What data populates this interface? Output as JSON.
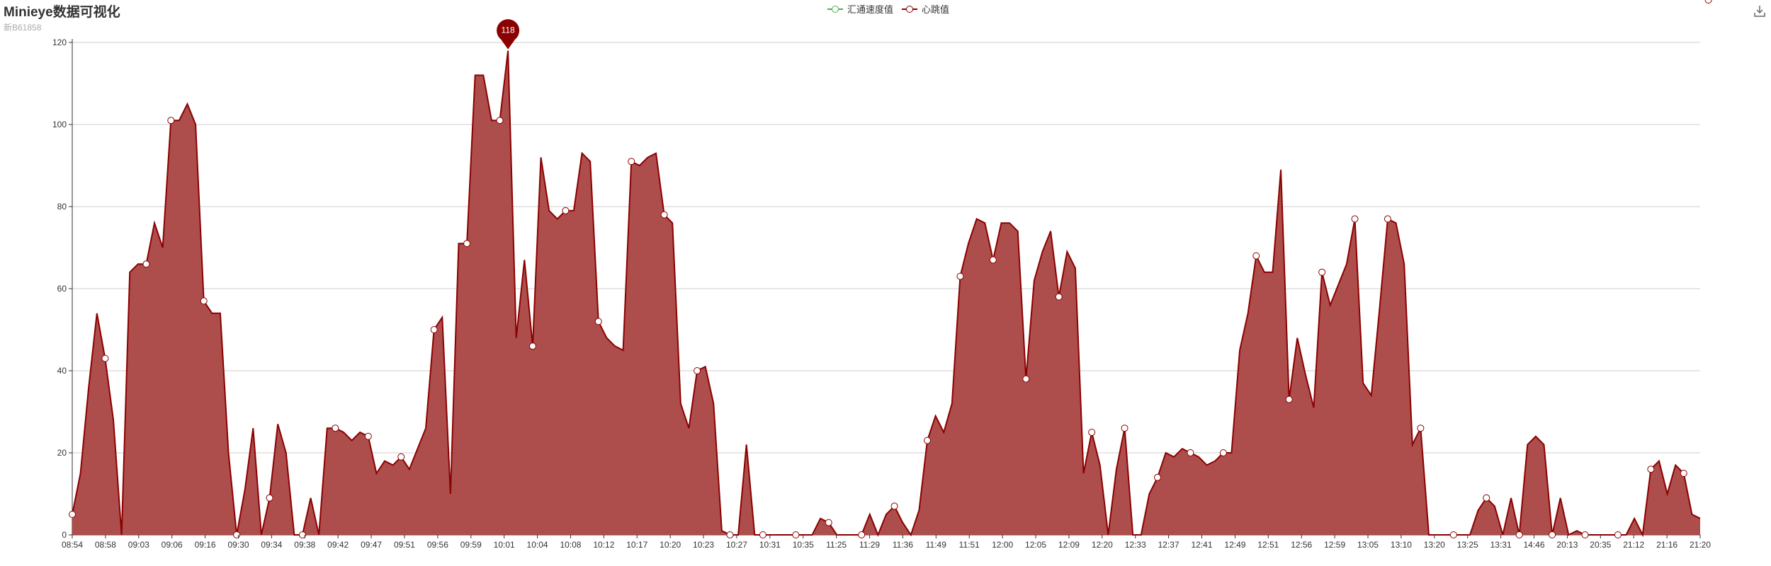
{
  "header": {
    "title": "Minieye数据可视化",
    "subtitle": "新B61858"
  },
  "legend": [
    {
      "name": "汇通速度值",
      "color": "#4cae4c"
    },
    {
      "name": "心跳值",
      "color": "#8b0000"
    }
  ],
  "toolbar": {
    "download_icon": "download-icon"
  },
  "chart_data": {
    "type": "area",
    "title": "Minieye数据可视化",
    "subtitle": "新B61858",
    "xlabel": "",
    "ylabel": "",
    "ylim": [
      0,
      120
    ],
    "yticks": [
      0,
      20,
      40,
      60,
      80,
      100,
      120
    ],
    "grid": true,
    "legend_position": "top-center",
    "x_tick_labels": [
      "08:54",
      "08:58",
      "09:03",
      "09:06",
      "09:16",
      "09:30",
      "09:34",
      "09:38",
      "09:42",
      "09:47",
      "09:51",
      "09:56",
      "09:59",
      "10:01",
      "10:04",
      "10:08",
      "10:12",
      "10:17",
      "10:20",
      "10:23",
      "10:27",
      "10:31",
      "10:35",
      "11:25",
      "11:29",
      "11:36",
      "11:49",
      "11:51",
      "12:00",
      "12:05",
      "12:09",
      "12:20",
      "12:33",
      "12:37",
      "12:41",
      "12:49",
      "12:51",
      "12:56",
      "12:59",
      "13:05",
      "13:10",
      "13:20",
      "13:25",
      "13:31",
      "14:46",
      "20:13",
      "20:35",
      "21:12",
      "21:16",
      "21:20"
    ],
    "series": [
      {
        "name": "汇通速度值",
        "color": "#4cae4c",
        "values": []
      },
      {
        "name": "心跳值",
        "color": "#8b0000",
        "fill": "#a94442",
        "values": [
          5,
          15,
          36,
          54,
          43,
          28,
          0,
          64,
          66,
          66,
          76,
          70,
          101,
          101,
          105,
          100,
          57,
          54,
          54,
          20,
          0,
          11,
          26,
          0,
          9,
          27,
          20,
          0,
          0,
          9,
          0,
          26,
          26,
          25,
          23,
          25,
          24,
          15,
          18,
          17,
          19,
          16,
          21,
          26,
          50,
          53,
          10,
          71,
          71,
          112,
          112,
          101,
          101,
          118,
          48,
          67,
          46,
          92,
          79,
          77,
          79,
          79,
          93,
          91,
          52,
          48,
          46,
          45,
          91,
          90,
          92,
          93,
          78,
          76,
          32,
          26,
          40,
          41,
          32,
          1,
          0,
          0,
          22,
          0,
          0,
          0,
          0,
          0,
          0,
          0,
          0,
          4,
          3,
          0,
          0,
          0,
          0,
          5,
          0,
          5,
          7,
          3,
          0,
          6,
          23,
          29,
          25,
          32,
          63,
          71,
          77,
          76,
          67,
          76,
          76,
          74,
          38,
          62,
          69,
          74,
          58,
          69,
          65,
          15,
          25,
          17,
          0,
          16,
          26,
          0,
          0,
          10,
          14,
          20,
          19,
          21,
          20,
          19,
          17,
          18,
          20,
          20,
          45,
          54,
          68,
          64,
          64,
          89,
          33,
          48,
          39,
          31,
          64,
          56,
          61,
          66,
          77,
          37,
          34,
          55,
          77,
          76,
          66,
          22,
          26,
          0,
          0,
          0,
          0,
          0,
          0,
          6,
          9,
          7,
          0,
          9,
          0,
          22,
          24,
          22,
          0,
          9,
          0,
          1,
          0,
          0,
          0,
          0,
          0,
          0,
          4,
          0,
          16,
          18,
          10,
          17,
          15,
          5,
          4
        ],
        "markers": [
          0,
          4,
          9,
          12,
          16,
          20,
          24,
          28,
          32,
          36,
          40,
          44,
          48,
          52,
          56,
          60,
          64,
          68,
          72,
          76,
          80,
          84,
          88,
          92,
          96,
          100,
          104,
          108,
          112,
          116,
          120,
          124,
          128,
          132,
          136,
          140,
          144,
          148,
          152,
          156,
          160,
          164,
          168,
          172,
          176,
          180,
          184,
          188,
          192,
          196,
          199
        ],
        "max_label": "118",
        "max_index": 53
      }
    ]
  }
}
